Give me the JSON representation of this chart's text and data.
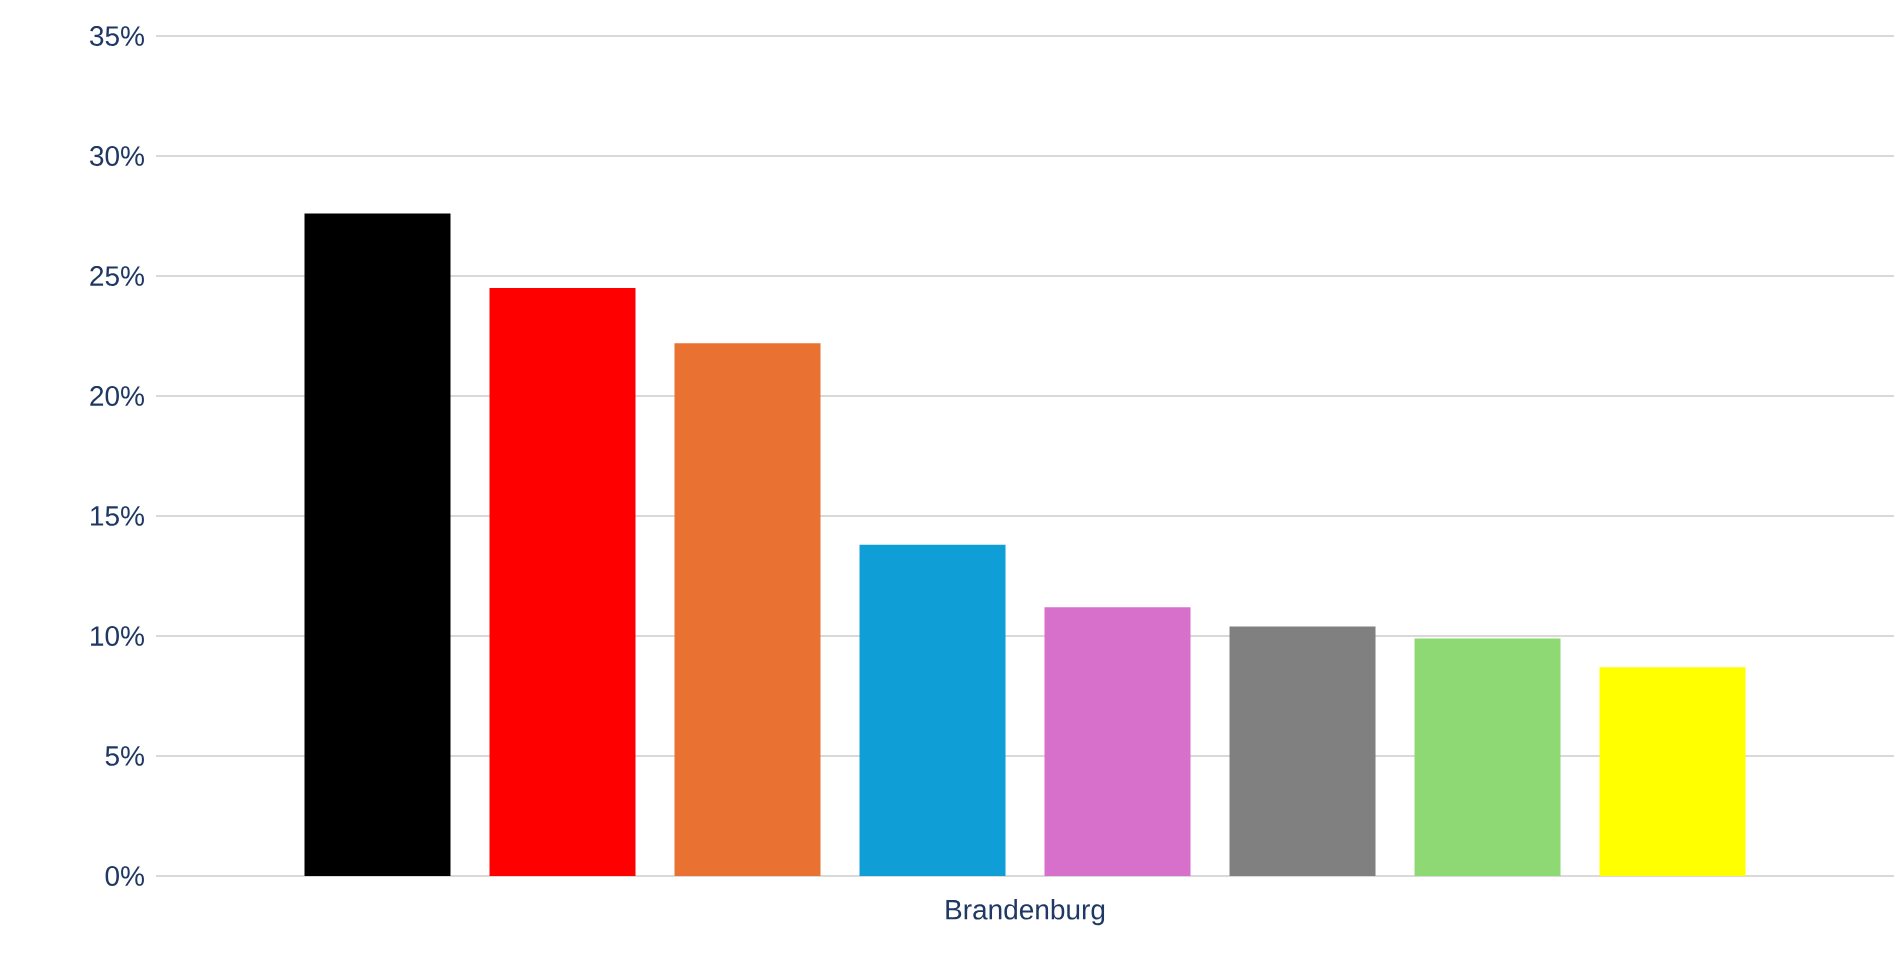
{
  "chart_data": {
    "type": "bar",
    "categories": [
      "Brandenburg"
    ],
    "series": [
      {
        "color": "#000000",
        "values": [
          27.6
        ]
      },
      {
        "color": "#ff0000",
        "values": [
          24.5
        ]
      },
      {
        "color": "#e97132",
        "values": [
          22.2
        ]
      },
      {
        "color": "#0f9ed5",
        "values": [
          13.8
        ]
      },
      {
        "color": "#d670cb",
        "values": [
          11.2
        ]
      },
      {
        "color": "#808080",
        "values": [
          10.4
        ]
      },
      {
        "color": "#8ed973",
        "values": [
          9.9
        ]
      },
      {
        "color": "#ffff00",
        "values": [
          8.7
        ]
      }
    ],
    "ylim": [
      0,
      35
    ],
    "yticks": [
      {
        "value": 0,
        "label": "0%"
      },
      {
        "value": 5,
        "label": "5%"
      },
      {
        "value": 10,
        "label": "10%"
      },
      {
        "value": 15,
        "label": "15%"
      },
      {
        "value": 20,
        "label": "20%"
      },
      {
        "value": 25,
        "label": "25%"
      },
      {
        "value": 30,
        "label": "30%"
      },
      {
        "value": 35,
        "label": "35%"
      }
    ],
    "grid": "y"
  }
}
